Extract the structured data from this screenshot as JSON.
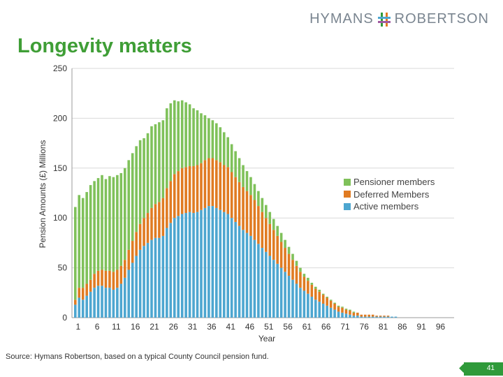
{
  "logo": {
    "left": "HYMANS",
    "right": "ROBERTSON"
  },
  "page_title": "Longevity matters",
  "source_text": "Source: Hymans Robertson, based on a typical County Council pension fund.",
  "page_number": "41",
  "colors": {
    "active": "#4da6d0",
    "deferred": "#e07b22",
    "pensioner": "#7fc15a",
    "title": "#3f9e36",
    "grid": "#d9d9d9"
  },
  "chart_data": {
    "type": "bar",
    "stacked": true,
    "xlabel": "Year",
    "ylabel": "Pension Amounts (£) Millions",
    "ylim": [
      0,
      250
    ],
    "yticks": [
      0,
      50,
      100,
      150,
      200,
      250
    ],
    "x_tick_labels": [
      "1",
      "6",
      "11",
      "16",
      "21",
      "26",
      "31",
      "36",
      "41",
      "46",
      "51",
      "56",
      "61",
      "66",
      "71",
      "76",
      "81",
      "86",
      "91",
      "96"
    ],
    "legend_position": "right",
    "series": [
      {
        "name": "Active members",
        "key": "active",
        "values": [
          13,
          20,
          18,
          22,
          26,
          30,
          32,
          32,
          30,
          30,
          28,
          30,
          34,
          40,
          48,
          55,
          62,
          68,
          72,
          75,
          78,
          80,
          80,
          82,
          90,
          95,
          100,
          102,
          104,
          105,
          106,
          105,
          106,
          108,
          110,
          112,
          112,
          110,
          108,
          106,
          104,
          100,
          96,
          92,
          88,
          85,
          82,
          78,
          74,
          70,
          66,
          62,
          58,
          54,
          50,
          46,
          42,
          38,
          34,
          30,
          27,
          24,
          21,
          18,
          16,
          14,
          12,
          10,
          8,
          6,
          5,
          4,
          3,
          2,
          2,
          1,
          1,
          1,
          1,
          1,
          1,
          1,
          1,
          1,
          1,
          0,
          0,
          0,
          0,
          0,
          0,
          0,
          0,
          0,
          0,
          0,
          0,
          0,
          0,
          0
        ]
      },
      {
        "name": "Deferred Members",
        "key": "deferred",
        "values": [
          5,
          10,
          12,
          12,
          12,
          14,
          15,
          16,
          17,
          17,
          18,
          18,
          18,
          18,
          20,
          22,
          24,
          26,
          28,
          30,
          32,
          34,
          36,
          38,
          40,
          42,
          44,
          45,
          46,
          46,
          46,
          47,
          47,
          47,
          48,
          48,
          48,
          48,
          48,
          47,
          47,
          46,
          45,
          44,
          43,
          42,
          41,
          40,
          38,
          36,
          34,
          32,
          30,
          28,
          26,
          24,
          22,
          20,
          18,
          16,
          14,
          13,
          12,
          11,
          10,
          9,
          8,
          7,
          6,
          5,
          5,
          4,
          4,
          3,
          3,
          2,
          2,
          2,
          2,
          1,
          1,
          1,
          1,
          0,
          0,
          0,
          0,
          0,
          0,
          0,
          0,
          0,
          0,
          0,
          0,
          0,
          0,
          0,
          0,
          0
        ]
      },
      {
        "name": "Pensioner members",
        "key": "pensioner",
        "values": [
          93,
          93,
          90,
          92,
          95,
          93,
          93,
          95,
          92,
          95,
          95,
          95,
          93,
          92,
          90,
          88,
          86,
          84,
          80,
          80,
          82,
          80,
          80,
          78,
          80,
          78,
          74,
          70,
          68,
          65,
          62,
          58,
          55,
          50,
          45,
          40,
          38,
          37,
          35,
          33,
          30,
          28,
          26,
          24,
          22,
          20,
          18,
          16,
          15,
          14,
          13,
          12,
          11,
          10,
          9,
          8,
          7,
          6,
          5,
          4,
          3,
          3,
          2,
          2,
          2,
          1,
          1,
          1,
          1,
          1,
          1,
          1,
          1,
          1,
          0,
          0,
          0,
          0,
          0,
          0,
          0,
          0,
          0,
          0,
          0,
          0,
          0,
          0,
          0,
          0,
          0,
          0,
          0,
          0,
          0,
          0,
          0,
          0,
          0,
          0
        ]
      }
    ]
  }
}
